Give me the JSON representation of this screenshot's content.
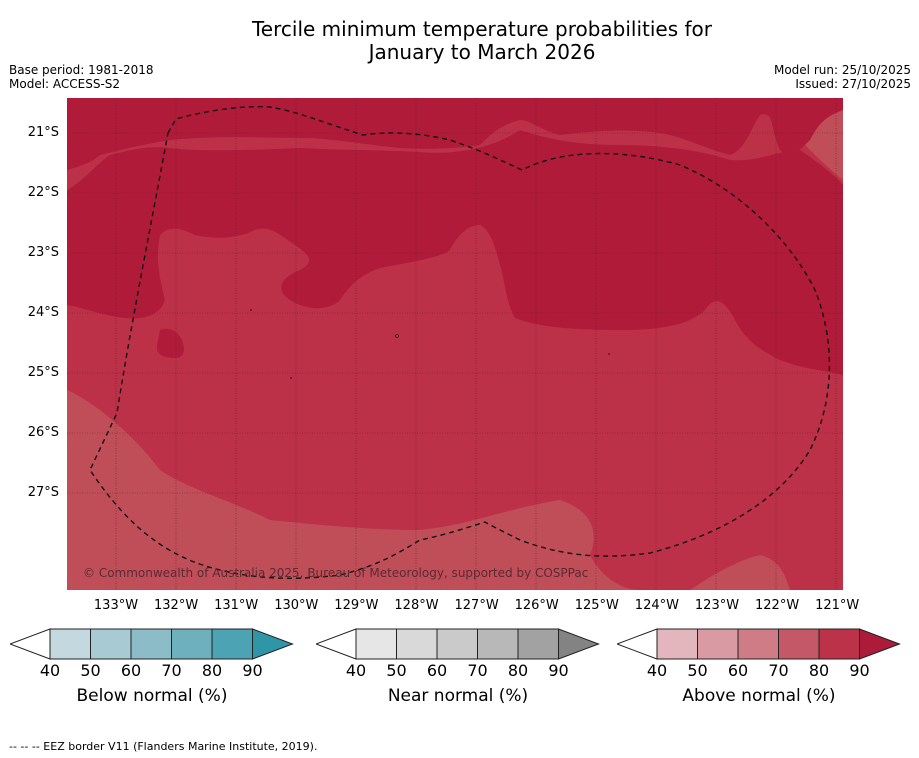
{
  "title_line1": "Tercile minimum temperature probabilities for",
  "title_line2": "January to March 2026",
  "base_period": "Base period: 1981-2018",
  "model": "Model: ACCESS-S2",
  "model_run": "Model run: 25/10/2025",
  "issued": "Issued: 27/10/2025",
  "copyright": "© Commonwealth of Australia 2025, Bureau of Meteorology, supported by COSPPac",
  "footer": "-- -- -- EEZ border V11 (Flanders Marine Institute, 2019).",
  "lat_labels": [
    "21°S",
    "22°S",
    "23°S",
    "24°S",
    "25°S",
    "26°S",
    "27°S"
  ],
  "lon_labels": [
    "133°W",
    "132°W",
    "131°W",
    "130°W",
    "129°W",
    "128°W",
    "127°W",
    "126°W",
    "125°W",
    "124°W",
    "123°W",
    "122°W",
    "121°W"
  ],
  "legends": [
    {
      "title": "Below normal (%)",
      "ticks": [
        "40",
        "50",
        "60",
        "70",
        "80",
        "90"
      ],
      "colors": [
        "#c3d8df",
        "#a8cbd3",
        "#8bbcc7",
        "#6fb0bd",
        "#4ca3b3"
      ],
      "extend_color": "#2f96a8"
    },
    {
      "title": "Near normal (%)",
      "ticks": [
        "40",
        "50",
        "60",
        "70",
        "80",
        "90"
      ],
      "colors": [
        "#e6e6e6",
        "#d9d9d9",
        "#cacaca",
        "#b8b8b8",
        "#a2a2a2"
      ],
      "extend_color": "#838383"
    },
    {
      "title": "Above normal (%)",
      "ticks": [
        "40",
        "50",
        "60",
        "70",
        "80",
        "90"
      ],
      "colors": [
        "#e3b6be",
        "#d99aa3",
        "#cf7c86",
        "#c55866",
        "#bb3249"
      ],
      "extend_color": "#ad1b3a"
    }
  ],
  "map_colors": {
    "p80": "#b01b3a",
    "p70": "#bc3148",
    "p60": "#c04e58"
  }
}
